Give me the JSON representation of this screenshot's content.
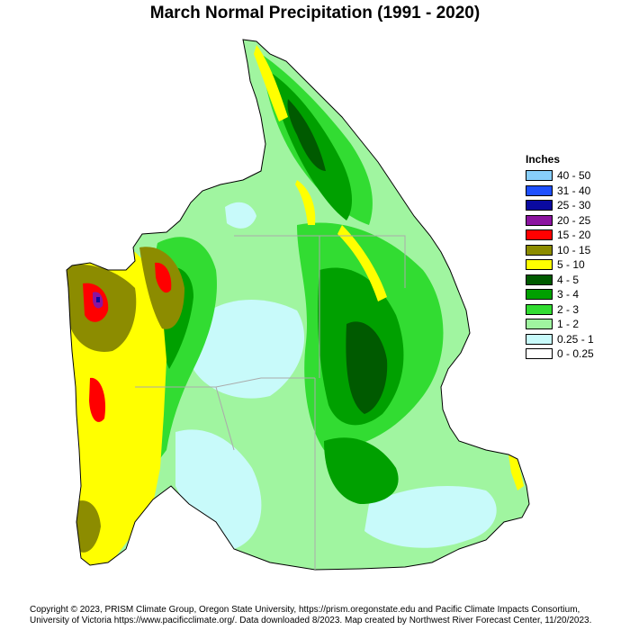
{
  "title": "March Normal Precipitation (1991 - 2020)",
  "legend": {
    "title": "Inches",
    "items": [
      {
        "label": "40 - 50",
        "color": "#87cefa"
      },
      {
        "label": "31 - 40",
        "color": "#1e50ff"
      },
      {
        "label": "25 - 30",
        "color": "#0a0aa0"
      },
      {
        "label": "20 - 25",
        "color": "#8c14a0"
      },
      {
        "label": "15 - 20",
        "color": "#ff0000"
      },
      {
        "label": "10 - 15",
        "color": "#8c8c00"
      },
      {
        "label": "5 - 10",
        "color": "#ffff00"
      },
      {
        "label": "4 - 5",
        "color": "#005a00"
      },
      {
        "label": "3 - 4",
        "color": "#00a000"
      },
      {
        "label": "2 - 3",
        "color": "#32dc32"
      },
      {
        "label": "1 - 2",
        "color": "#a0f5a0"
      },
      {
        "label": "0.25 - 1",
        "color": "#c8fafa"
      },
      {
        "label": "0 - 0.25",
        "color": "#ffffff"
      }
    ]
  },
  "footer": {
    "line1": "Copyright © 2023, PRISM Climate Group, Oregon State University, https://prism.oregonstate.edu and Pacific Climate Impacts Consortium,",
    "line2": "University of Victoria https://www.pacificclimate.org/.  Data downloaded 8/2023.  Map created by Northwest River Forecast Center, 11/20/2023."
  }
}
